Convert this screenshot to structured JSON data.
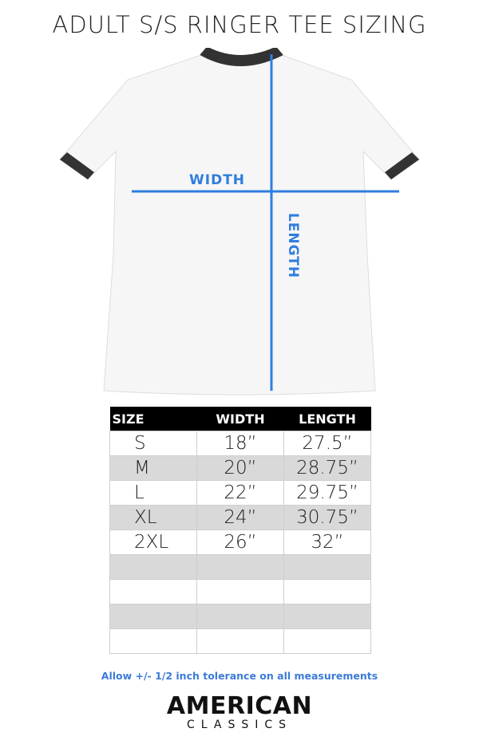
{
  "title": "ADULT S/S RINGER TEE SIZING",
  "diagram": {
    "width_label": "WIDTH",
    "length_label": "LENGTH",
    "measure_color": "#2f7de0",
    "ringer_color": "#333333"
  },
  "table": {
    "headers": [
      "SIZE",
      "WIDTH",
      "LENGTH"
    ],
    "rows": [
      [
        "S",
        "18”",
        "27.5”"
      ],
      [
        "M",
        "20”",
        "28.75”"
      ],
      [
        "L",
        "22”",
        "29.75”"
      ],
      [
        "XL",
        "24”",
        "30.75”"
      ],
      [
        "2XL",
        "26”",
        "32”"
      ],
      [
        "",
        "",
        ""
      ],
      [
        "",
        "",
        ""
      ],
      [
        "",
        "",
        ""
      ],
      [
        "",
        "",
        ""
      ]
    ]
  },
  "note": "Allow +/- 1/2 inch tolerance on all measurements",
  "brand": {
    "line1": "AMERICAN",
    "line2": "CLASSICS"
  }
}
